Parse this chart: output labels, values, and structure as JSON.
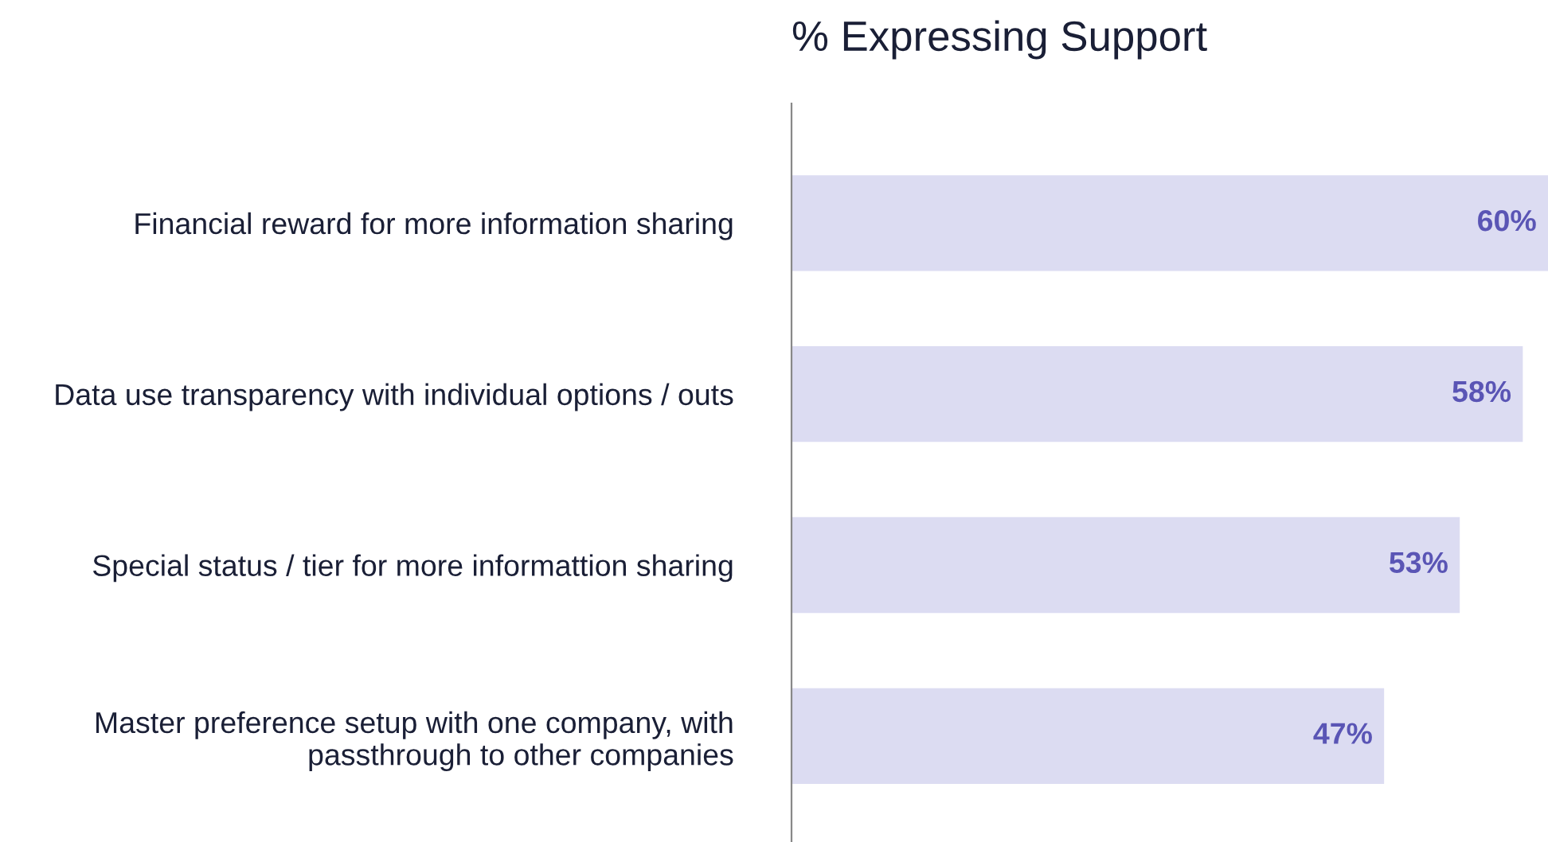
{
  "chart_data": {
    "type": "bar",
    "orientation": "horizontal",
    "title": "% Expressing Support",
    "categories": [
      "Financial reward for more information sharing",
      "Data use transparency with individual options / outs",
      "Special status / tier for more informattion sharing",
      "Master preference setup with one company, with\npassthrough to other companies"
    ],
    "values": [
      60,
      58,
      53,
      47
    ],
    "value_labels": [
      "60%",
      "58%",
      "53%",
      "47%"
    ],
    "color": "#dcdcf2",
    "grid": false,
    "legend": false
  }
}
